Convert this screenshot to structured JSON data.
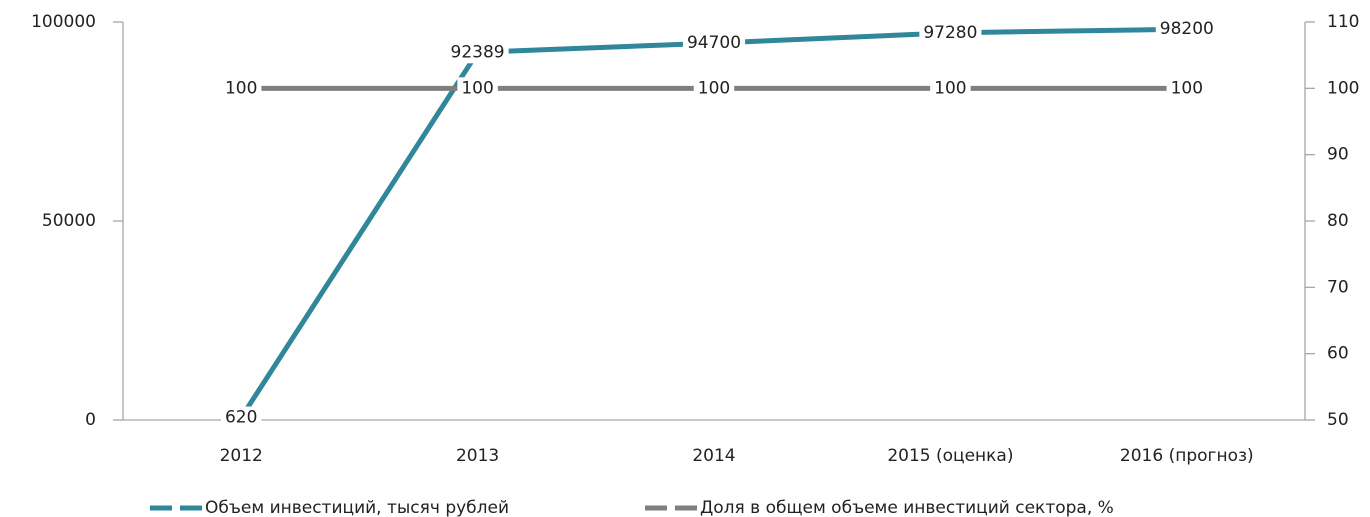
{
  "chart_data": {
    "type": "line",
    "categories": [
      "2012",
      "2013",
      "2014",
      "2015 (оценка)",
      "2016 (прогноз)"
    ],
    "series": [
      {
        "name": "Объем инвестиций, тысяч рублей",
        "color": "#31879a",
        "values": [
          620,
          92389,
          94700,
          97280,
          98200
        ]
      },
      {
        "name": "Доля в общем объеме инвестиций сектора, %",
        "color": "#7f7f7f",
        "axis": "y2",
        "values": [
          100,
          100,
          100,
          100,
          100
        ]
      }
    ],
    "ylim": [
      0,
      100000
    ],
    "yticks": [
      0,
      50000,
      100000
    ],
    "y2lim": [
      50,
      110
    ],
    "y2ticks": [
      50,
      60,
      70,
      80,
      90,
      100,
      110
    ],
    "legend": "bottom"
  }
}
